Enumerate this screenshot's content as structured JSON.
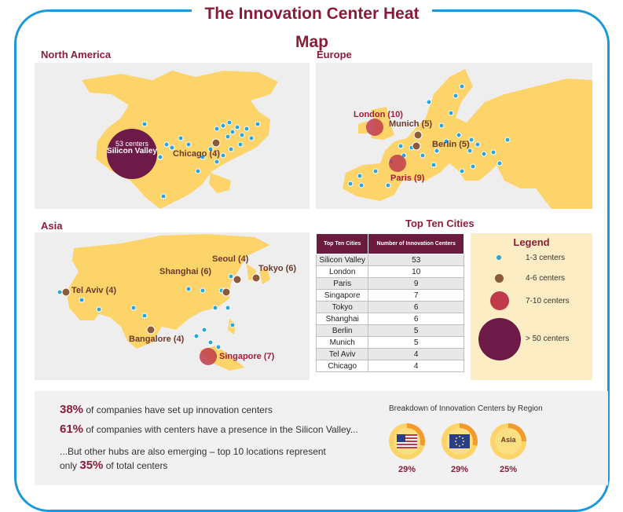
{
  "title": "The Innovation Center Heat Map",
  "colors": {
    "accent": "#8a1c3a",
    "border": "#1a9ad6",
    "land": "#fcd46a",
    "dot_small": "#2aa6d8",
    "dot_medium": "#8a5a3a",
    "dot_large": "#c0394a",
    "dot_xlarge": "#6e1a48"
  },
  "north_america": {
    "label": "North America",
    "markers": {
      "silicon_valley_count": "53 centers",
      "silicon_valley_name": "Silicon Valley",
      "chicago": "Chicago (4)"
    }
  },
  "europe": {
    "label": "Europe",
    "markers": {
      "london": "London (10)",
      "munich": "Munich (5)",
      "berlin": "Berlin (5)",
      "paris": "Paris (9)"
    }
  },
  "asia": {
    "label": "Asia",
    "markers": {
      "seoul": "Seoul (4)",
      "tokyo": "Tokyo (6)",
      "shanghai": "Shanghai (6)",
      "tel_aviv": "Tel Aviv (4)",
      "bangalore": "Bangalore (4)",
      "singapore": "Singapore (7)"
    }
  },
  "top_ten": {
    "heading": "Top Ten Cities",
    "col1": "Top Ten Cities",
    "col2": "Number of Innovation Centers",
    "rows": [
      {
        "city": "Silicon Valley",
        "count": "53"
      },
      {
        "city": "London",
        "count": "10"
      },
      {
        "city": "Paris",
        "count": "9"
      },
      {
        "city": "Singapore",
        "count": "7"
      },
      {
        "city": "Tokyo",
        "count": "6"
      },
      {
        "city": "Shanghai",
        "count": "6"
      },
      {
        "city": "Berlin",
        "count": "5"
      },
      {
        "city": "Munich",
        "count": "5"
      },
      {
        "city": "Tel Aviv",
        "count": "4"
      },
      {
        "city": "Chicago",
        "count": "4"
      }
    ]
  },
  "legend": {
    "title": "Legend",
    "items": [
      "1-3 centers",
      "4-6 centers",
      "7-10 centers",
      "> 50 centers"
    ]
  },
  "stats": {
    "s1_pct": "38%",
    "s1_text": " of companies have set up innovation centers",
    "s2_pct": "61%",
    "s2_text": " of companies with centers have a presence in the Silicon Valley...",
    "s3_line1": "...But other hubs are also emerging – top 10 locations represent",
    "s3_pre": "only ",
    "s3_pct": "35%",
    "s3_post": " of total centers"
  },
  "breakdown": {
    "title": "Breakdown of Innovation Centers by Region",
    "regions": [
      {
        "icon": "us-flag-icon",
        "pct": "29%"
      },
      {
        "icon": "eu-flag-icon",
        "pct": "29%"
      },
      {
        "label": "Asia",
        "pct": "25%"
      }
    ]
  }
}
